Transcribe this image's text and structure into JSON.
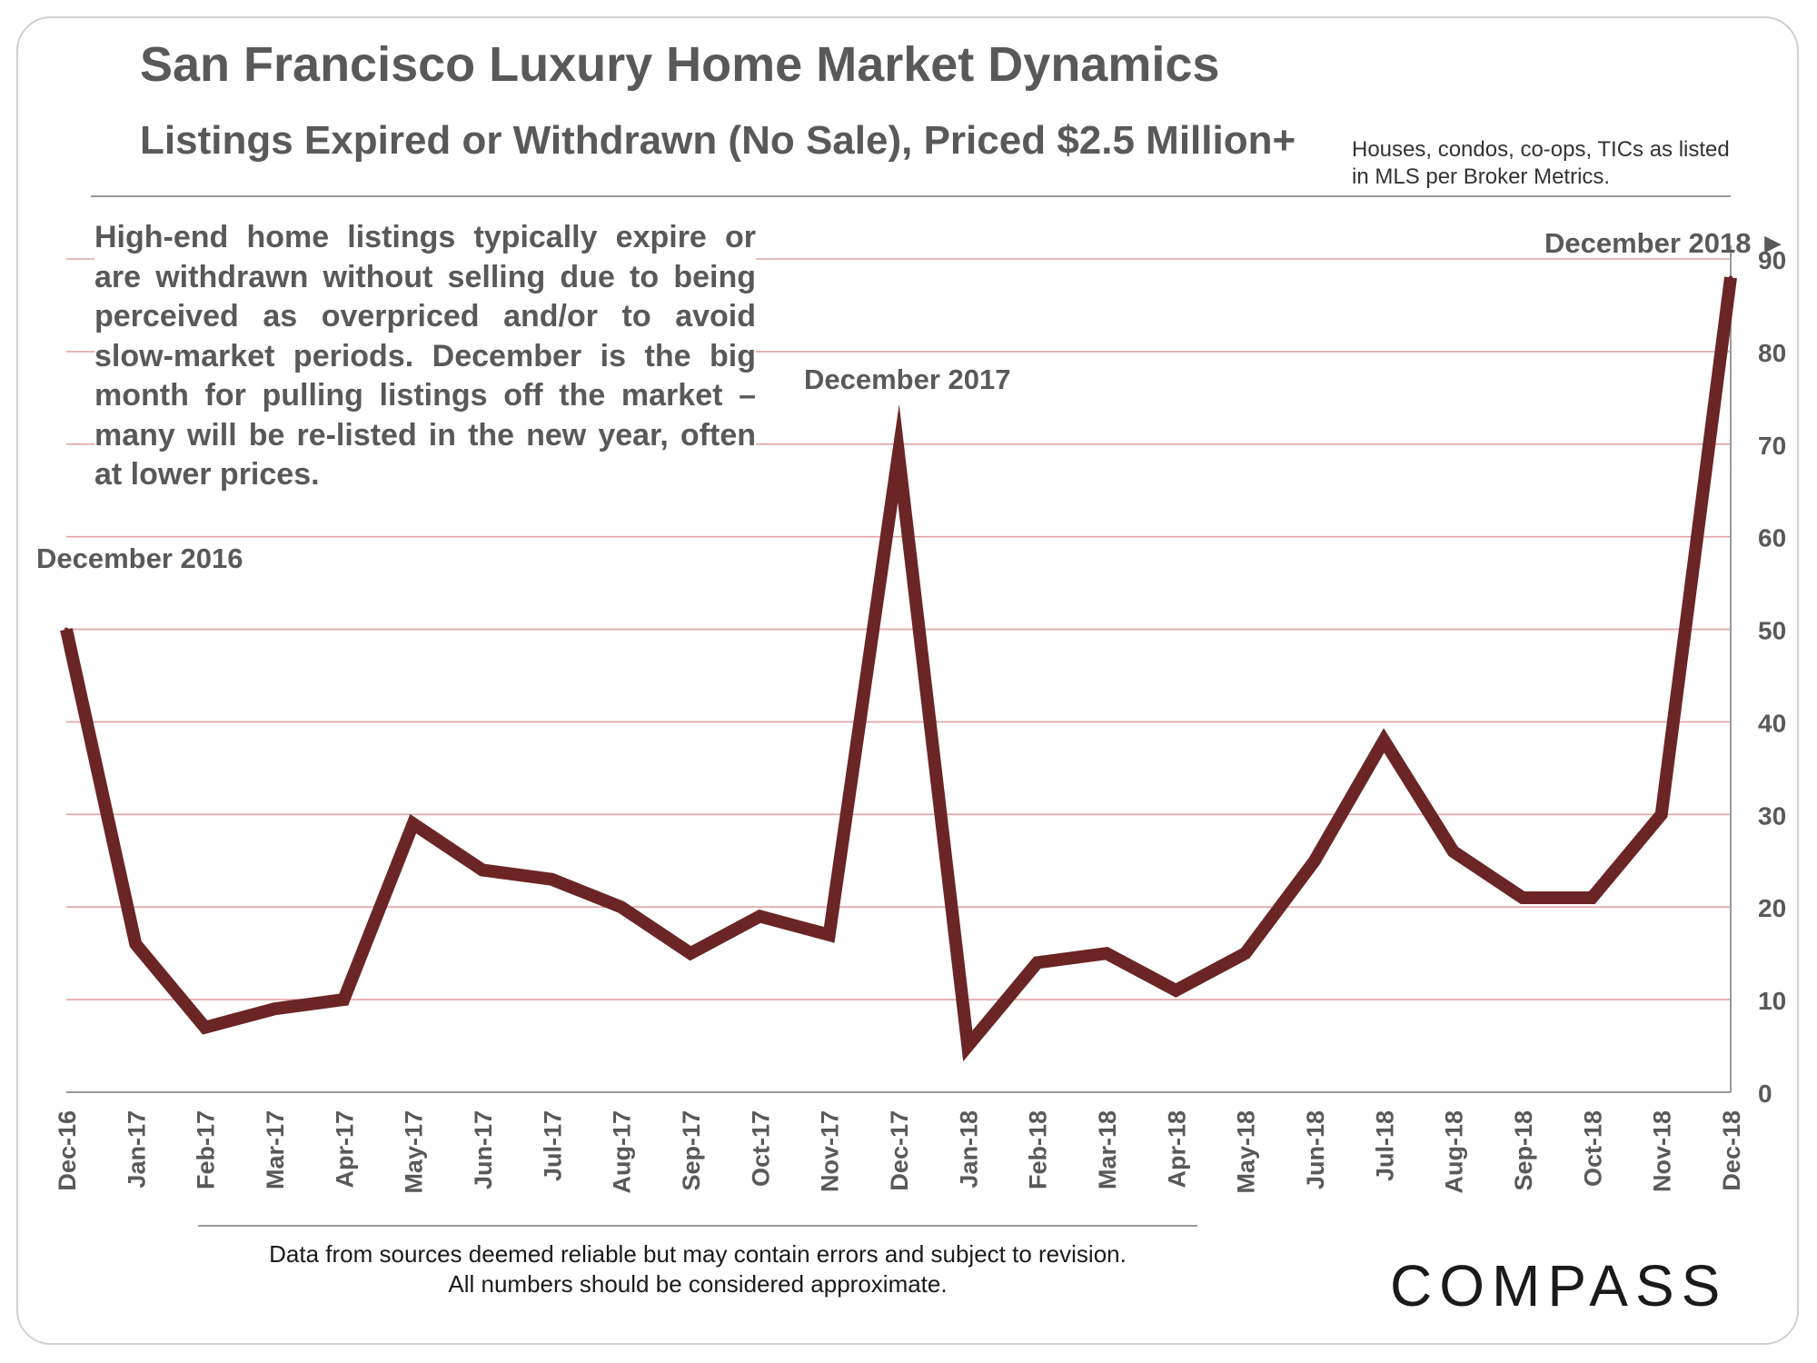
{
  "title": "San Francisco Luxury Home Market Dynamics",
  "subtitle": "Listings Expired or Withdrawn (No Sale), Priced $2.5 Million+",
  "source_note": "Houses, condos, co-ops, TICs as listed in MLS per Broker Metrics.",
  "annotation": "High-end home listings typically expire or are withdrawn without selling due to being perceived as overpriced and/or to avoid slow-market periods. December is the big month for pulling listings off the market – many will be re-listed in the new year, often at lower prices.",
  "peak_labels": {
    "dec_2016": "December 2016",
    "dec_2017": "December 2017",
    "dec_2018": "December 2018 ►"
  },
  "footer": {
    "disclaimer_line1": "Data from sources deemed reliable but may contain errors and subject to revision.",
    "disclaimer_line2": "All numbers should be considered approximate."
  },
  "logo": {
    "text": "COMPASS"
  },
  "colors": {
    "line": "#6b2525",
    "grid": "#e2a3a3",
    "text": "#595959"
  },
  "chart_data": {
    "type": "line",
    "title": "San Francisco Luxury Home Market Dynamics",
    "subtitle": "Listings Expired or Withdrawn (No Sale), Priced $2.5 Million+",
    "xlabel": "",
    "ylabel": "",
    "categories": [
      "Dec-16",
      "Jan-17",
      "Feb-17",
      "Mar-17",
      "Apr-17",
      "May-17",
      "Jun-17",
      "Jul-17",
      "Aug-17",
      "Sep-17",
      "Oct-17",
      "Nov-17",
      "Dec-17",
      "Jan-18",
      "Feb-18",
      "Mar-18",
      "Apr-18",
      "May-18",
      "Jun-18",
      "Jul-18",
      "Aug-18",
      "Sep-18",
      "Oct-18",
      "Nov-18",
      "Dec-18"
    ],
    "series": [
      {
        "name": "Listings Expired or Withdrawn",
        "values": [
          50,
          16,
          7,
          9,
          10,
          29,
          24,
          23,
          20,
          15,
          19,
          17,
          69,
          5,
          14,
          15,
          11,
          15,
          25,
          38,
          26,
          21,
          21,
          30,
          88
        ]
      }
    ],
    "ylim": [
      0,
      90
    ],
    "yticks": [
      0,
      10,
      20,
      30,
      40,
      50,
      60,
      70,
      80,
      90
    ],
    "grid": true,
    "y_axis_side": "right",
    "legend": "none"
  }
}
